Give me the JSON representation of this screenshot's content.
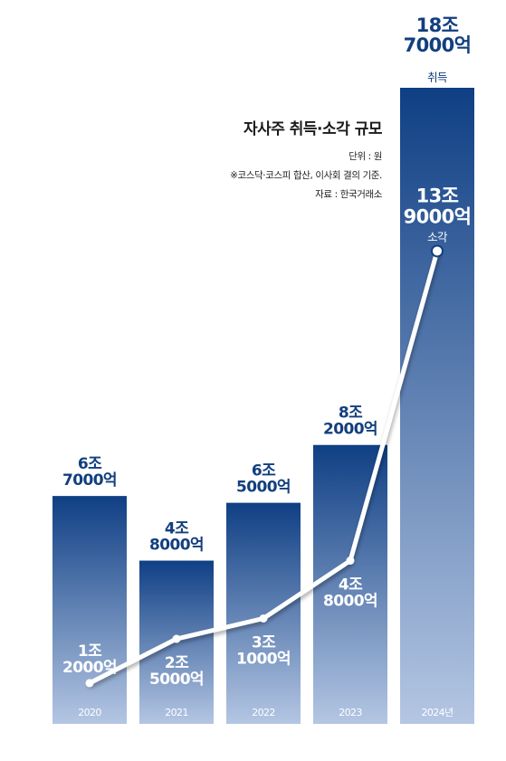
{
  "chart_data": {
    "type": "bar+line",
    "title": "자사주 취득·소각 규모",
    "notes": [
      "단위 : 원",
      "※코스닥·코스피 합산, 이사회 결의 기준.",
      "자료 : 한국거래소"
    ],
    "categories": [
      "2020",
      "2021",
      "2022",
      "2023",
      "2024년"
    ],
    "series": [
      {
        "name": "취득",
        "type": "bar",
        "values": [
          67000,
          48000,
          65000,
          82000,
          187000
        ],
        "labels": [
          [
            "6조",
            "7000억"
          ],
          [
            "4조",
            "8000억"
          ],
          [
            "6조",
            "5000억"
          ],
          [
            "8조",
            "2000억"
          ],
          [
            "18조",
            "7000억"
          ]
        ],
        "caption": "취득"
      },
      {
        "name": "소각",
        "type": "line",
        "values": [
          12000,
          25000,
          31000,
          48000,
          139000
        ],
        "labels": [
          [
            "1조",
            "2000억"
          ],
          [
            "2조",
            "5000억"
          ],
          [
            "3조",
            "1000억"
          ],
          [
            "4조",
            "8000억"
          ],
          [
            "13조",
            "9000억"
          ]
        ],
        "caption": "소각"
      }
    ],
    "ylim": [
      0,
      187000
    ],
    "colors": {
      "bar_top": "#0f3f84",
      "bar_bottom": "#b4c6e3",
      "line": "#ffffff",
      "label_dark": "#123f7e",
      "label_light": "#ffffff"
    }
  }
}
